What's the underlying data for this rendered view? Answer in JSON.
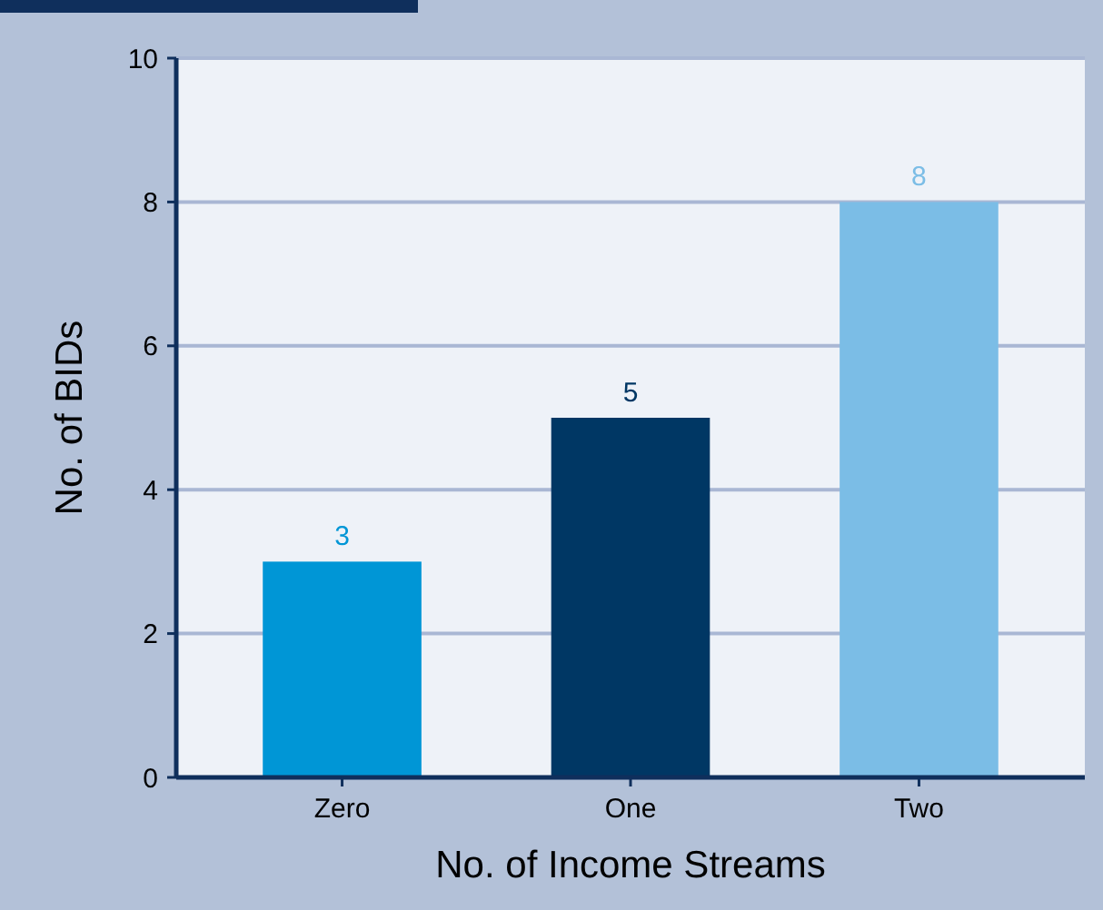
{
  "chart_data": {
    "type": "bar",
    "xlabel": "No. of Income Streams",
    "ylabel": "No. of BIDs",
    "categories": [
      "Zero",
      "One",
      "Two"
    ],
    "values": [
      3,
      5,
      8
    ],
    "colors": [
      "#0096d6",
      "#003764",
      "#7bbde6"
    ],
    "ylim": [
      0,
      10
    ],
    "yticks": [
      0,
      2,
      4,
      6,
      8,
      10
    ],
    "grid": "y",
    "data_labels": true
  }
}
